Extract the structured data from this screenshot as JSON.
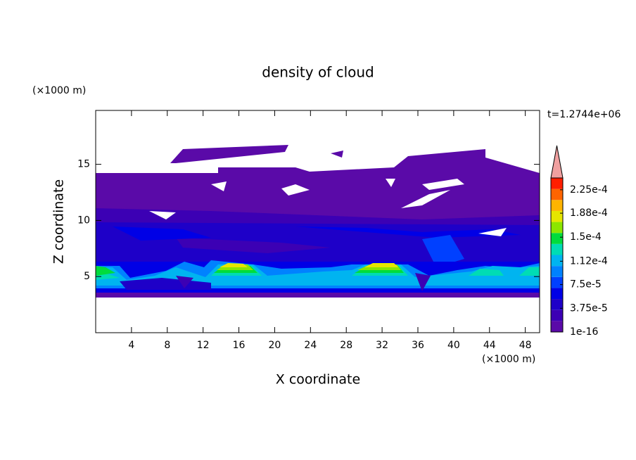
{
  "chart_data": {
    "type": "contour",
    "title": "density of cloud",
    "xlabel": "X coordinate",
    "ylabel": "Z coordinate",
    "xunit": "(×1000 m)",
    "yunit": "(×1000 m)",
    "annotation": "t=1.2744e+06",
    "xlim": [
      0,
      49.6
    ],
    "ylim": [
      0,
      19.8
    ],
    "xticks": [
      4,
      8,
      12,
      16,
      20,
      24,
      28,
      32,
      36,
      40,
      44,
      48
    ],
    "yticks": [
      5,
      10,
      15
    ],
    "clim": [
      1e-16,
      0.00024375
    ],
    "cticks": [
      1e-16,
      {
        "value": 3.75e-05,
        "label": "3.75e-5"
      },
      {
        "value": 7.5e-05,
        "label": "7.5e-5"
      },
      {
        "value": 0.000112,
        "label": "1.12e-4"
      },
      {
        "value": 0.00015,
        "label": "1.5e-4"
      },
      {
        "value": 0.000188,
        "label": "1.88e-4"
      },
      {
        "value": 0.000225,
        "label": "2.25e-4"
      }
    ],
    "colors": [
      "#5a0aa8",
      "#3c00b4",
      "#1e00c8",
      "#0000e6",
      "#0040ff",
      "#0082ff",
      "#00b4f0",
      "#00dcb4",
      "#00dc3c",
      "#8ce600",
      "#e6e600",
      "#ffb400",
      "#ff6400",
      "#ff1e00"
    ],
    "extend_color": "#f0a0a0"
  }
}
